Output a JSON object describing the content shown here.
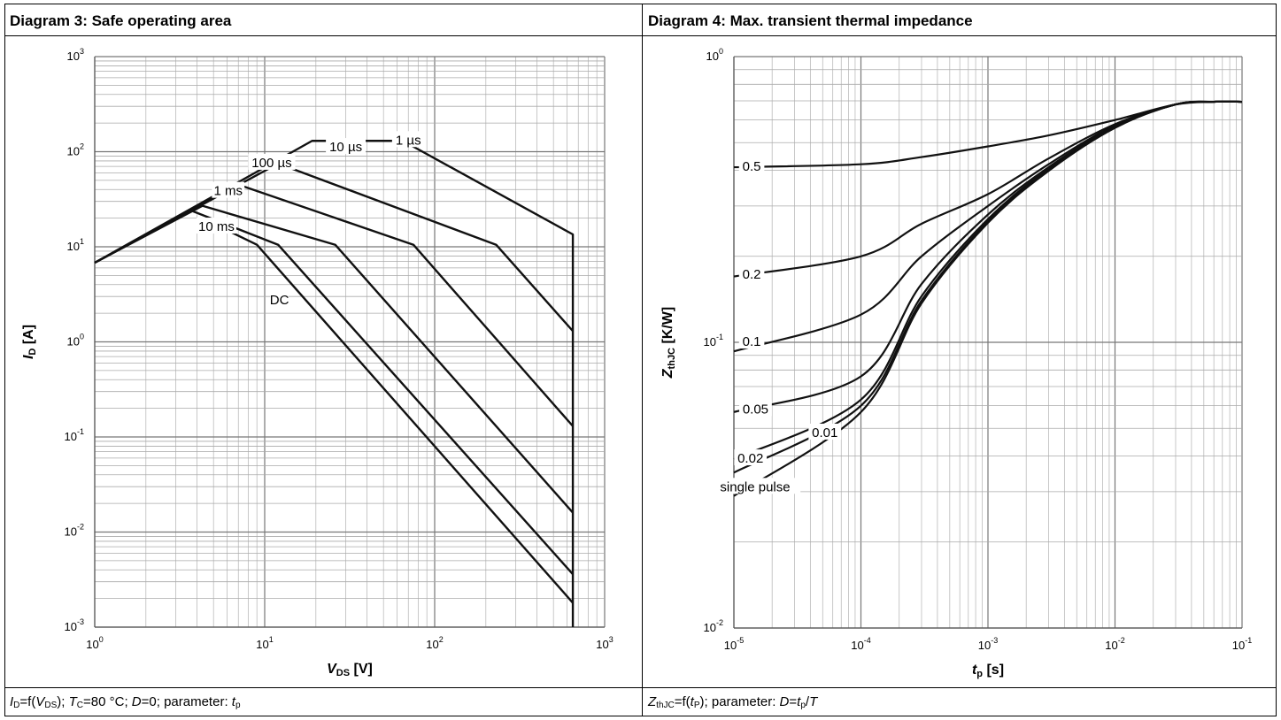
{
  "panels": [
    {
      "title": "Diagram 3: Safe operating area"
    },
    {
      "title": "Diagram 4: Max. transient thermal impedance"
    }
  ],
  "captions": {
    "left": {
      "p1": "I",
      "p1sub": "D",
      "p2": "=f(",
      "p3": "V",
      "p3sub": "DS",
      "p4": "); ",
      "p5": "T",
      "p5sub": "C",
      "p6": "=80 °C; ",
      "p7": "D",
      "p8": "=0; parameter: ",
      "p9": "t",
      "p9sub": "p"
    },
    "right": {
      "p1": "Z",
      "p1sub": "thJC",
      "p2": "=f(",
      "p3": "t",
      "p3sub": "P",
      "p4": "); parameter: ",
      "p5": "D",
      "p6": "=",
      "p7": "t",
      "p7sub": "p",
      "p8": "/",
      "p9": "T"
    }
  },
  "chart_data": [
    {
      "type": "line",
      "title": "Diagram 3: Safe operating area",
      "xlabel": "V DS [V]",
      "ylabel": "I D [A]",
      "xlabel_parts": {
        "main": "V",
        "sub": "DS",
        "unit": " [V]"
      },
      "ylabel_parts": {
        "main": "I",
        "sub": "D",
        "unit": " [A]"
      },
      "xscale": "log",
      "yscale": "log",
      "xlim": [
        1,
        1000
      ],
      "ylim": [
        0.001,
        1000
      ],
      "x_ticks": [
        {
          "base": "10",
          "exp": "0",
          "v": 1
        },
        {
          "base": "10",
          "exp": "1",
          "v": 10
        },
        {
          "base": "10",
          "exp": "2",
          "v": 100
        },
        {
          "base": "10",
          "exp": "3",
          "v": 1000
        }
      ],
      "y_ticks": [
        {
          "base": "10",
          "exp": "3",
          "v": 1000
        },
        {
          "base": "10",
          "exp": "2",
          "v": 100
        },
        {
          "base": "10",
          "exp": "1",
          "v": 10
        },
        {
          "base": "10",
          "exp": "0",
          "v": 1
        },
        {
          "base": "10",
          "exp": "-1",
          "v": 0.1
        },
        {
          "base": "10",
          "exp": "-2",
          "v": 0.01
        },
        {
          "base": "10",
          "exp": "-3",
          "v": 0.001
        }
      ],
      "grid": true,
      "series": [
        {
          "name": "1 µs",
          "points": [
            [
              1,
              6.8
            ],
            [
              19,
              130
            ],
            [
              65,
              130
            ],
            [
              650,
              13.5
            ],
            [
              650,
              0.001
            ]
          ]
        },
        {
          "name": "10 µs",
          "points": [
            [
              1,
              6.8
            ],
            [
              12,
              75
            ],
            [
              230,
              10.5
            ],
            [
              650,
              1.3
            ]
          ]
        },
        {
          "name": "100 µs",
          "points": [
            [
              1,
              6.8
            ],
            [
              7,
              45
            ],
            [
              75,
              10.5
            ],
            [
              650,
              0.13
            ]
          ]
        },
        {
          "name": "1 ms",
          "points": [
            [
              1,
              6.8
            ],
            [
              4.3,
              27
            ],
            [
              26,
              10.5
            ],
            [
              650,
              0.016
            ]
          ]
        },
        {
          "name": "10 ms",
          "points": [
            [
              3.7,
              24
            ],
            [
              12,
              10.5
            ],
            [
              650,
              0.0036
            ]
          ]
        },
        {
          "name": "DC",
          "points": [
            [
              5,
              17.5
            ],
            [
              9,
              10.5
            ],
            [
              650,
              0.0018
            ]
          ]
        }
      ],
      "labels": [
        {
          "text": "1 µs",
          "x": 70,
          "y": 130
        },
        {
          "text": "10 µs",
          "x": 30,
          "y": 110
        },
        {
          "text": "100 µs",
          "x": 11,
          "y": 75
        },
        {
          "text": "1 ms",
          "x": 6.1,
          "y": 38
        },
        {
          "text": "10 ms",
          "x": 5.2,
          "y": 16
        },
        {
          "text": "DC",
          "x": 12.2,
          "y": 2.7
        }
      ]
    },
    {
      "type": "line",
      "title": "Diagram 4: Max. transient thermal impedance",
      "xlabel": "t p [s]",
      "ylabel": "Z thJC [K/W]",
      "xlabel_parts": {
        "main": "t",
        "sub": "p",
        "unit": " [s]"
      },
      "ylabel_parts": {
        "main": "Z",
        "sub": "thJC",
        "unit": " [K/W]"
      },
      "xscale": "log",
      "yscale": "log",
      "xlim": [
        1e-05,
        0.1
      ],
      "ylim": [
        0.01,
        1
      ],
      "x_ticks": [
        {
          "base": "10",
          "exp": "-5",
          "v": 1e-05
        },
        {
          "base": "10",
          "exp": "-4",
          "v": 0.0001
        },
        {
          "base": "10",
          "exp": "-3",
          "v": 0.001
        },
        {
          "base": "10",
          "exp": "-2",
          "v": 0.01
        },
        {
          "base": "10",
          "exp": "-1",
          "v": 0.1
        }
      ],
      "y_ticks": [
        {
          "base": "10",
          "exp": "0",
          "v": 1
        },
        {
          "base": "10",
          "exp": "-1",
          "v": 0.1
        },
        {
          "base": "10",
          "exp": "-2",
          "v": 0.01
        }
      ],
      "grid": true,
      "series": [
        {
          "name": "0.5",
          "points": [
            [
              1e-05,
              0.41
            ],
            [
              0.0001,
              0.42
            ],
            [
              0.0003,
              0.445
            ],
            [
              0.001,
              0.485
            ],
            [
              0.003,
              0.53
            ],
            [
              0.01,
              0.6
            ],
            [
              0.03,
              0.68
            ],
            [
              0.06,
              0.695
            ],
            [
              0.1,
              0.695
            ]
          ]
        },
        {
          "name": "0.2",
          "points": [
            [
              1e-05,
              0.17
            ],
            [
              0.0001,
              0.2
            ],
            [
              0.0003,
              0.26
            ],
            [
              0.001,
              0.33
            ],
            [
              0.003,
              0.44
            ],
            [
              0.01,
              0.58
            ],
            [
              0.03,
              0.68
            ],
            [
              0.06,
              0.695
            ],
            [
              0.1,
              0.695
            ]
          ]
        },
        {
          "name": "0.1",
          "points": [
            [
              1e-05,
              0.093
            ],
            [
              0.0001,
              0.125
            ],
            [
              0.0003,
              0.2
            ],
            [
              0.001,
              0.3
            ],
            [
              0.003,
              0.42
            ],
            [
              0.01,
              0.575
            ],
            [
              0.03,
              0.68
            ],
            [
              0.06,
              0.695
            ],
            [
              0.1,
              0.695
            ]
          ]
        },
        {
          "name": "0.05",
          "points": [
            [
              1e-05,
              0.057
            ],
            [
              0.0001,
              0.076
            ],
            [
              0.0003,
              0.16
            ],
            [
              0.001,
              0.28
            ],
            [
              0.003,
              0.41
            ],
            [
              0.01,
              0.57
            ],
            [
              0.03,
              0.68
            ],
            [
              0.06,
              0.695
            ],
            [
              0.1,
              0.695
            ]
          ]
        },
        {
          "name": "0.02",
          "points": [
            [
              1e-05,
              0.039
            ],
            [
              0.0001,
              0.063
            ],
            [
              0.0003,
              0.145
            ],
            [
              0.001,
              0.27
            ],
            [
              0.003,
              0.405
            ],
            [
              0.01,
              0.568
            ],
            [
              0.03,
              0.68
            ],
            [
              0.06,
              0.695
            ],
            [
              0.1,
              0.695
            ]
          ]
        },
        {
          "name": "0.01",
          "points": [
            [
              1e-05,
              0.035
            ],
            [
              0.0001,
              0.06
            ],
            [
              0.0003,
              0.14
            ],
            [
              0.001,
              0.265
            ],
            [
              0.003,
              0.4
            ],
            [
              0.01,
              0.565
            ],
            [
              0.03,
              0.68
            ],
            [
              0.06,
              0.695
            ],
            [
              0.1,
              0.695
            ]
          ]
        },
        {
          "name": "single pulse",
          "points": [
            [
              1e-05,
              0.029
            ],
            [
              0.0001,
              0.057
            ],
            [
              0.0003,
              0.137
            ],
            [
              0.001,
              0.262
            ],
            [
              0.003,
              0.398
            ],
            [
              0.01,
              0.563
            ],
            [
              0.03,
              0.68
            ],
            [
              0.06,
              0.695
            ],
            [
              0.1,
              0.695
            ]
          ]
        }
      ],
      "labels": [
        {
          "text": "0.5",
          "x": 1.38e-05,
          "y": 0.41
        },
        {
          "text": "0.2",
          "x": 1.38e-05,
          "y": 0.172
        },
        {
          "text": "0.1",
          "x": 1.38e-05,
          "y": 0.1
        },
        {
          "text": "0.05",
          "x": 1.48e-05,
          "y": 0.058
        },
        {
          "text": "0.02",
          "x": 1.35e-05,
          "y": 0.039
        },
        {
          "text": "0.01",
          "x": 5.2e-05,
          "y": 0.048
        },
        {
          "text": "single pulse",
          "x": 1.47e-05,
          "y": 0.031
        }
      ]
    }
  ]
}
